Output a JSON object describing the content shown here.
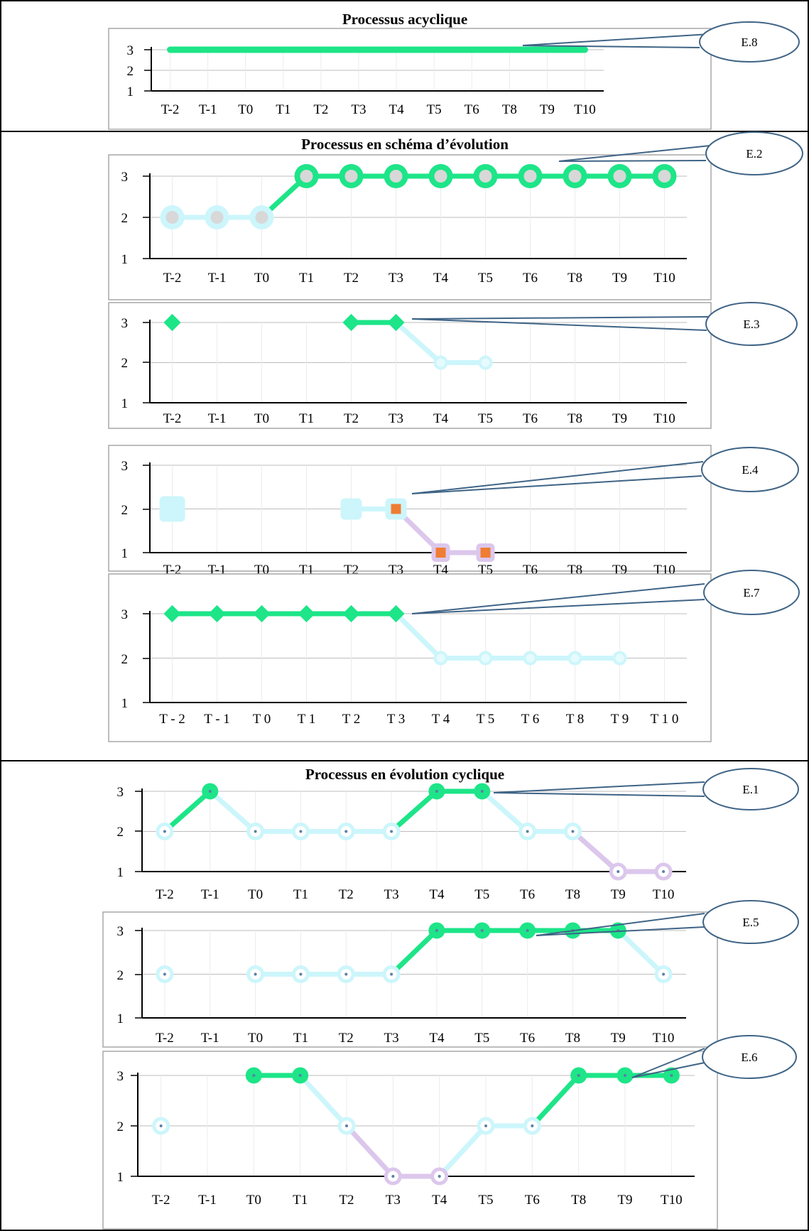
{
  "colors": {
    "level3": "#1de588",
    "level2": "#ccf6fb",
    "level1": "#dcc7ec",
    "marker_inner": "#d8d8d8",
    "square_inner": "#ef7d33",
    "callout_line": "#3f6486",
    "chart_frame": "#a7a7a7",
    "grid": "#bdbdbd"
  },
  "sections": [
    {
      "title": "Processus acyclique"
    },
    {
      "title": "Processus en schéma d’évolution"
    },
    {
      "title": "Processus en évolution cyclique"
    }
  ],
  "chart_data": [
    {
      "type": "line",
      "section": 0,
      "callout": "E.8",
      "marker": "none",
      "categories": [
        "T-2",
        "T-1",
        "T0",
        "T1",
        "T2",
        "T3",
        "T4",
        "T5",
        "T6",
        "T8",
        "T9",
        "T10"
      ],
      "values": [
        3,
        3,
        3,
        3,
        3,
        3,
        3,
        3,
        3,
        3,
        3,
        3
      ],
      "yticks": [
        "1",
        "2",
        "3"
      ],
      "ylim": [
        1,
        3
      ]
    },
    {
      "type": "line",
      "section": 1,
      "callout": "E.2",
      "marker": "circle",
      "categories": [
        "T-2",
        "T-1",
        "T0",
        "T1",
        "T2",
        "T3",
        "T4",
        "T5",
        "T6",
        "T8",
        "T9",
        "T10"
      ],
      "values": [
        2,
        2,
        2,
        3,
        3,
        3,
        3,
        3,
        3,
        3,
        3,
        3
      ],
      "yticks": [
        "1",
        "2",
        "3"
      ],
      "ylim": [
        1,
        3
      ]
    },
    {
      "type": "line",
      "section": 1,
      "callout": "E.3",
      "marker": "diamond",
      "categories": [
        "T-2",
        "T-1",
        "T0",
        "T1",
        "T2",
        "T3",
        "T4",
        "T5",
        "T6",
        "T8",
        "T9",
        "T10"
      ],
      "values": [
        3,
        null,
        null,
        null,
        3,
        3,
        2,
        2,
        null,
        null,
        null,
        null
      ],
      "yticks": [
        "1",
        "2",
        "3"
      ],
      "ylim": [
        1,
        3
      ]
    },
    {
      "type": "line",
      "section": 1,
      "callout": "E.4",
      "marker": "square",
      "categories": [
        "T-2",
        "T-1",
        "T0",
        "T1",
        "T2",
        "T3",
        "T4",
        "T5",
        "T6",
        "T8",
        "T9",
        "T10"
      ],
      "values": [
        2,
        null,
        null,
        null,
        2,
        2,
        1,
        1,
        null,
        null,
        null,
        null
      ],
      "yticks": [
        "1",
        "2",
        "3"
      ],
      "ylim": [
        1,
        3
      ]
    },
    {
      "type": "line",
      "section": 1,
      "callout": "E.7",
      "marker": "diamond",
      "categories": [
        "T - 2",
        "T - 1",
        "T 0",
        "T 1",
        "T 2",
        "T 3",
        "T 4",
        "T 5",
        "T 6",
        "T 8",
        "T 9",
        "T 1 0"
      ],
      "values": [
        3,
        3,
        3,
        3,
        3,
        3,
        2,
        2,
        2,
        2,
        2,
        null
      ],
      "yticks": [
        "1",
        "2",
        "3"
      ],
      "ylim": [
        1,
        3
      ]
    },
    {
      "type": "line",
      "section": 2,
      "callout": "E.1",
      "marker": "dot",
      "categories": [
        "T-2",
        "T-1",
        "T0",
        "T1",
        "T2",
        "T3",
        "T4",
        "T5",
        "T6",
        "T8",
        "T9",
        "T10"
      ],
      "values": [
        2,
        3,
        2,
        2,
        2,
        2,
        3,
        3,
        2,
        2,
        1,
        1
      ],
      "yticks": [
        "1",
        "2",
        "3"
      ],
      "ylim": [
        1,
        3
      ]
    },
    {
      "type": "line",
      "section": 2,
      "callout": "E.5",
      "marker": "dot",
      "categories": [
        "T-2",
        "T-1",
        "T0",
        "T1",
        "T2",
        "T3",
        "T4",
        "T5",
        "T6",
        "T8",
        "T9",
        "T10"
      ],
      "values": [
        2,
        null,
        2,
        2,
        2,
        2,
        3,
        3,
        3,
        3,
        3,
        2
      ],
      "yticks": [
        "1",
        "2",
        "3"
      ],
      "ylim": [
        1,
        3
      ]
    },
    {
      "type": "line",
      "section": 2,
      "callout": "E.6",
      "marker": "dot",
      "categories": [
        "T-2",
        "T-1",
        "T0",
        "T1",
        "T2",
        "T3",
        "T4",
        "T5",
        "T6",
        "T8",
        "T9",
        "T10"
      ],
      "values": [
        2,
        null,
        3,
        3,
        2,
        1,
        1,
        2,
        2,
        3,
        3,
        3
      ],
      "yticks": [
        "1",
        "2",
        "3"
      ],
      "ylim": [
        1,
        3
      ]
    }
  ]
}
